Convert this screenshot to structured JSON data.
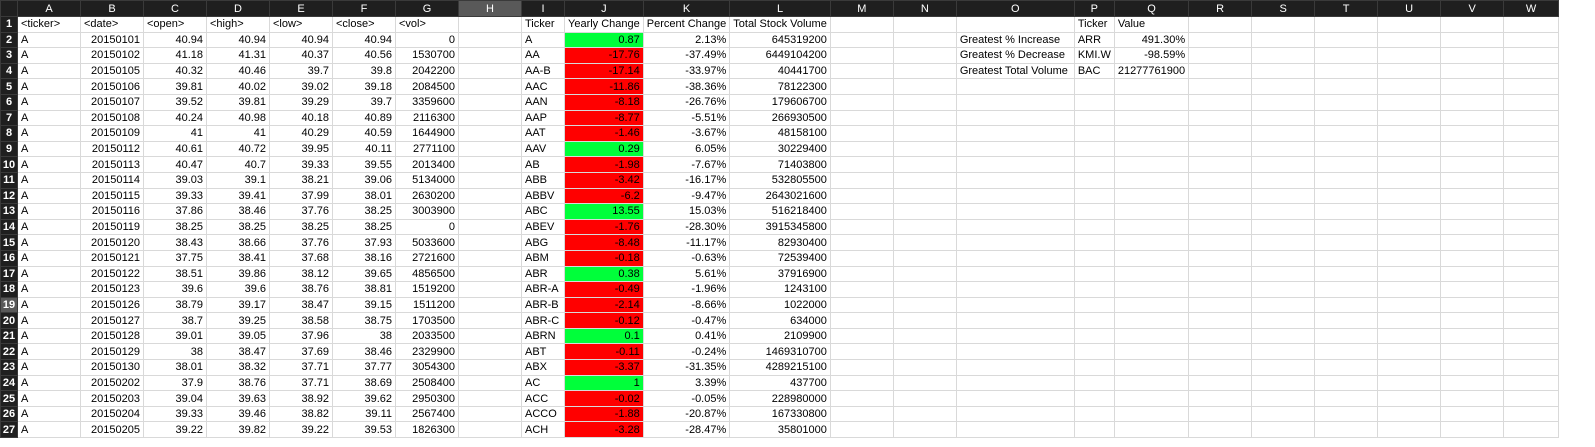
{
  "columns": [
    "A",
    "B",
    "C",
    "D",
    "E",
    "F",
    "G",
    "H",
    "I",
    "J",
    "K",
    "L",
    "M",
    "N",
    "O",
    "P",
    "Q",
    "R",
    "S",
    "T",
    "U",
    "V",
    "W"
  ],
  "selected_column": "H",
  "selected_row": 19,
  "rows": [
    [
      "<ticker>",
      "<date>",
      "<open>",
      "<high>",
      "<low>",
      "<close>",
      "<vol>",
      "",
      "Ticker",
      "Yearly Change",
      "Percent Change",
      "Total Stock Volume",
      "",
      "",
      "",
      "Ticker",
      "Value",
      "",
      "",
      "",
      "",
      "",
      ""
    ],
    [
      "A",
      "20150101",
      "40.94",
      "40.94",
      "40.94",
      "40.94",
      "0",
      "",
      "A",
      "0.87",
      "2.13%",
      "645319200",
      "",
      "",
      "Greatest % Increase",
      "ARR",
      "491.30%",
      "",
      "",
      "",
      "",
      "",
      ""
    ],
    [
      "A",
      "20150102",
      "41.18",
      "41.31",
      "40.37",
      "40.56",
      "1530700",
      "",
      "AA",
      "-17.76",
      "-37.49%",
      "6449104200",
      "",
      "",
      "Greatest % Decrease",
      "KMI.W",
      "-98.59%",
      "",
      "",
      "",
      "",
      "",
      ""
    ],
    [
      "A",
      "20150105",
      "40.32",
      "40.46",
      "39.7",
      "39.8",
      "2042200",
      "",
      "AA-B",
      "-17.14",
      "-33.97%",
      "40441700",
      "",
      "",
      "Greatest Total Volume",
      "BAC",
      "21277761900",
      "",
      "",
      "",
      "",
      "",
      ""
    ],
    [
      "A",
      "20150106",
      "39.81",
      "40.02",
      "39.02",
      "39.18",
      "2084500",
      "",
      "AAC",
      "-11.86",
      "-38.36%",
      "78122300",
      "",
      "",
      "",
      "",
      "",
      "",
      "",
      "",
      "",
      "",
      ""
    ],
    [
      "A",
      "20150107",
      "39.52",
      "39.81",
      "39.29",
      "39.7",
      "3359600",
      "",
      "AAN",
      "-8.18",
      "-26.76%",
      "179606700",
      "",
      "",
      "",
      "",
      "",
      "",
      "",
      "",
      "",
      "",
      ""
    ],
    [
      "A",
      "20150108",
      "40.24",
      "40.98",
      "40.18",
      "40.89",
      "2116300",
      "",
      "AAP",
      "-8.77",
      "-5.51%",
      "266930500",
      "",
      "",
      "",
      "",
      "",
      "",
      "",
      "",
      "",
      "",
      ""
    ],
    [
      "A",
      "20150109",
      "41",
      "41",
      "40.29",
      "40.59",
      "1644900",
      "",
      "AAT",
      "-1.46",
      "-3.67%",
      "48158100",
      "",
      "",
      "",
      "",
      "",
      "",
      "",
      "",
      "",
      "",
      ""
    ],
    [
      "A",
      "20150112",
      "40.61",
      "40.72",
      "39.95",
      "40.11",
      "2771100",
      "",
      "AAV",
      "0.29",
      "6.05%",
      "30229400",
      "",
      "",
      "",
      "",
      "",
      "",
      "",
      "",
      "",
      "",
      ""
    ],
    [
      "A",
      "20150113",
      "40.47",
      "40.7",
      "39.33",
      "39.55",
      "2013400",
      "",
      "AB",
      "-1.98",
      "-7.67%",
      "71403800",
      "",
      "",
      "",
      "",
      "",
      "",
      "",
      "",
      "",
      "",
      ""
    ],
    [
      "A",
      "20150114",
      "39.03",
      "39.1",
      "38.21",
      "39.06",
      "5134000",
      "",
      "ABB",
      "-3.42",
      "-16.17%",
      "532805500",
      "",
      "",
      "",
      "",
      "",
      "",
      "",
      "",
      "",
      "",
      ""
    ],
    [
      "A",
      "20150115",
      "39.33",
      "39.41",
      "37.99",
      "38.01",
      "2630200",
      "",
      "ABBV",
      "-6.2",
      "-9.47%",
      "2643021600",
      "",
      "",
      "",
      "",
      "",
      "",
      "",
      "",
      "",
      "",
      ""
    ],
    [
      "A",
      "20150116",
      "37.86",
      "38.46",
      "37.76",
      "38.25",
      "3003900",
      "",
      "ABC",
      "13.55",
      "15.03%",
      "516218400",
      "",
      "",
      "",
      "",
      "",
      "",
      "",
      "",
      "",
      "",
      ""
    ],
    [
      "A",
      "20150119",
      "38.25",
      "38.25",
      "38.25",
      "38.25",
      "0",
      "",
      "ABEV",
      "-1.76",
      "-28.30%",
      "3915345800",
      "",
      "",
      "",
      "",
      "",
      "",
      "",
      "",
      "",
      "",
      ""
    ],
    [
      "A",
      "20150120",
      "38.43",
      "38.66",
      "37.76",
      "37.93",
      "5033600",
      "",
      "ABG",
      "-8.48",
      "-11.17%",
      "82930400",
      "",
      "",
      "",
      "",
      "",
      "",
      "",
      "",
      "",
      "",
      ""
    ],
    [
      "A",
      "20150121",
      "37.75",
      "38.41",
      "37.68",
      "38.16",
      "2721600",
      "",
      "ABM",
      "-0.18",
      "-0.63%",
      "72539400",
      "",
      "",
      "",
      "",
      "",
      "",
      "",
      "",
      "",
      "",
      ""
    ],
    [
      "A",
      "20150122",
      "38.51",
      "39.86",
      "38.12",
      "39.65",
      "4856500",
      "",
      "ABR",
      "0.38",
      "5.61%",
      "37916900",
      "",
      "",
      "",
      "",
      "",
      "",
      "",
      "",
      "",
      "",
      ""
    ],
    [
      "A",
      "20150123",
      "39.6",
      "39.6",
      "38.76",
      "38.81",
      "1519200",
      "",
      "ABR-A",
      "-0.49",
      "-1.96%",
      "1243100",
      "",
      "",
      "",
      "",
      "",
      "",
      "",
      "",
      "",
      "",
      ""
    ],
    [
      "A",
      "20150126",
      "38.79",
      "39.17",
      "38.47",
      "39.15",
      "1511200",
      "",
      "ABR-B",
      "-2.14",
      "-8.66%",
      "1022000",
      "",
      "",
      "",
      "",
      "",
      "",
      "",
      "",
      "",
      "",
      ""
    ],
    [
      "A",
      "20150127",
      "38.7",
      "39.25",
      "38.58",
      "38.75",
      "1703500",
      "",
      "ABR-C",
      "-0.12",
      "-0.47%",
      "634000",
      "",
      "",
      "",
      "",
      "",
      "",
      "",
      "",
      "",
      "",
      ""
    ],
    [
      "A",
      "20150128",
      "39.01",
      "39.05",
      "37.96",
      "38",
      "2033500",
      "",
      "ABRN",
      "0.1",
      "0.41%",
      "2109900",
      "",
      "",
      "",
      "",
      "",
      "",
      "",
      "",
      "",
      "",
      ""
    ],
    [
      "A",
      "20150129",
      "38",
      "38.47",
      "37.69",
      "38.46",
      "2329900",
      "",
      "ABT",
      "-0.11",
      "-0.24%",
      "1469310700",
      "",
      "",
      "",
      "",
      "",
      "",
      "",
      "",
      "",
      "",
      ""
    ],
    [
      "A",
      "20150130",
      "38.01",
      "38.32",
      "37.71",
      "37.77",
      "3054300",
      "",
      "ABX",
      "-3.37",
      "-31.35%",
      "4289215100",
      "",
      "",
      "",
      "",
      "",
      "",
      "",
      "",
      "",
      "",
      ""
    ],
    [
      "A",
      "20150202",
      "37.9",
      "38.76",
      "37.71",
      "38.69",
      "2508400",
      "",
      "AC",
      "1",
      "3.39%",
      "437700",
      "",
      "",
      "",
      "",
      "",
      "",
      "",
      "",
      "",
      "",
      ""
    ],
    [
      "A",
      "20150203",
      "39.04",
      "39.63",
      "38.92",
      "39.62",
      "2950300",
      "",
      "ACC",
      "-0.02",
      "-0.05%",
      "228980000",
      "",
      "",
      "",
      "",
      "",
      "",
      "",
      "",
      "",
      "",
      ""
    ],
    [
      "A",
      "20150204",
      "39.33",
      "39.46",
      "38.82",
      "39.11",
      "2567400",
      "",
      "ACCO",
      "-1.88",
      "-20.87%",
      "167330800",
      "",
      "",
      "",
      "",
      "",
      "",
      "",
      "",
      "",
      "",
      ""
    ],
    [
      "A",
      "20150205",
      "39.22",
      "39.82",
      "39.22",
      "39.53",
      "1826300",
      "",
      "ACH",
      "-3.28",
      "-28.47%",
      "35801000",
      "",
      "",
      "",
      "",
      "",
      "",
      "",
      "",
      "",
      "",
      ""
    ]
  ]
}
